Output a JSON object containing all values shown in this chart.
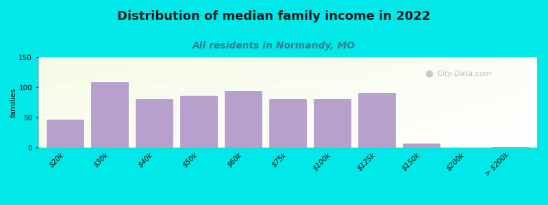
{
  "title": "Distribution of median family income in 2022",
  "subtitle": "All residents in Normandy, MO",
  "ylabel": "families",
  "categories": [
    "$20k",
    "$30k",
    "$40k",
    "$50k",
    "$60k",
    "$75k",
    "$100k",
    "$125k",
    "$150k",
    "$200k",
    "> $200k"
  ],
  "values": [
    48,
    110,
    82,
    88,
    96,
    82,
    82,
    92,
    8,
    0,
    2
  ],
  "bar_color": "#b8a0cc",
  "bar_edgecolor": "#ffffff",
  "ylim": [
    0,
    150
  ],
  "yticks": [
    0,
    50,
    100,
    150
  ],
  "bg_outer": "#00e8e8",
  "bg_plot": "#e8f2e0",
  "title_fontsize": 13,
  "subtitle_fontsize": 10,
  "ylabel_fontsize": 8,
  "tick_fontsize": 7.5,
  "watermark": "City-Data.com"
}
